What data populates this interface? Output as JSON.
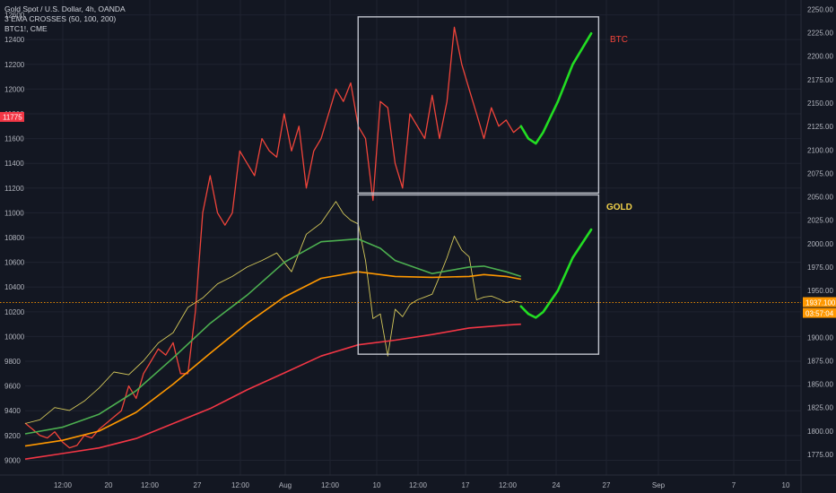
{
  "legend": {
    "title": "Gold Spot / U.S. Dollar, 4h, OANDA",
    "indicator": "3 EMA CROSSES (50, 100, 200)",
    "compare": "BTC1!, CME"
  },
  "colors": {
    "background": "#131722",
    "grid": "#1f2330",
    "btc_line": "#f0443a",
    "gold_line": "#d4c85a",
    "ema50": "#4caf50",
    "ema100": "#ff9800",
    "ema200": "#f23645",
    "projection": "#22dd22",
    "box": "#c0c3cc",
    "price_line": "#ff9800",
    "btc_badge": "#f23645",
    "gold_badge": "#ff9800"
  },
  "badges": {
    "btc_price": "11775",
    "gold_price": "1937.100",
    "countdown": "03:57:04"
  },
  "annotations": {
    "btc_label": "BTC",
    "gold_label": "GOLD"
  },
  "chart_data": {
    "type": "line",
    "title": "Gold Spot / U.S. Dollar, 4h, OANDA",
    "x_ticks": [
      "12:00",
      "20",
      "12:00",
      "27",
      "12:00",
      "Aug",
      "12:00",
      "10",
      "12:00",
      "17",
      "12:00",
      "24",
      "27",
      "Sep",
      "7",
      "10"
    ],
    "y_left": {
      "label": "BTC1!, CME",
      "ticks": [
        9000,
        9200,
        9400,
        9600,
        9800,
        10000,
        10200,
        10400,
        10600,
        10800,
        11000,
        11200,
        11400,
        11600,
        11800,
        12000,
        12200,
        12400,
        12600
      ],
      "ylim": [
        8880,
        12720
      ]
    },
    "y_right": {
      "label": "Gold Spot / U.S. Dollar",
      "ticks": [
        1775,
        1800,
        1825,
        1850,
        1875,
        1900,
        1925,
        1950,
        1975,
        2000,
        2025,
        2050,
        2075,
        2100,
        2125,
        2150,
        2175,
        2200,
        2225,
        2250
      ],
      "ylim": [
        1753,
        2260
      ]
    },
    "x_range": [
      0,
      100
    ],
    "series": [
      {
        "name": "BTC1!, CME",
        "axis": "left",
        "x": [
          0,
          1,
          2,
          3,
          4,
          5,
          6,
          7,
          8,
          9,
          10,
          11,
          12,
          13,
          14,
          15,
          16,
          17,
          18,
          19,
          20,
          21,
          22,
          23,
          23.5,
          24,
          25,
          26,
          27,
          28,
          29,
          30,
          31,
          32,
          33,
          34,
          35,
          36,
          37,
          38,
          39,
          40,
          41,
          42,
          43,
          44,
          45,
          46,
          47,
          48,
          49,
          50,
          51,
          52,
          53,
          54,
          55,
          56,
          57,
          58,
          59,
          60,
          61,
          62,
          63,
          64,
          65,
          66,
          67
        ],
        "values": [
          9300,
          9250,
          9200,
          9180,
          9230,
          9150,
          9100,
          9120,
          9200,
          9180,
          9250,
          9300,
          9350,
          9400,
          9600,
          9500,
          9700,
          9800,
          9900,
          9850,
          9950,
          9700,
          9700,
          10200,
          10600,
          11000,
          11300,
          11000,
          10900,
          11000,
          11500,
          11400,
          11300,
          11600,
          11500,
          11450,
          11800,
          11500,
          11700,
          11200,
          11500,
          11600,
          11800,
          12000,
          11900,
          12050,
          11700,
          11600,
          11100,
          11900,
          11850,
          11400,
          11200,
          11800,
          11700,
          11600,
          11950,
          11600,
          11900,
          12500,
          12200,
          12000,
          11800,
          11600,
          11850,
          11700,
          11750,
          11650,
          11700
        ]
      },
      {
        "name": "Gold Spot / U.S. Dollar",
        "axis": "right",
        "x": [
          0,
          2,
          4,
          6,
          8,
          10,
          12,
          14,
          16,
          18,
          20,
          22,
          24,
          26,
          28,
          30,
          32,
          34,
          36,
          38,
          40,
          42,
          43,
          44,
          45,
          46,
          47,
          48,
          49,
          50,
          51,
          52,
          53,
          54,
          55,
          56,
          57,
          58,
          59,
          60,
          61,
          62,
          63,
          64,
          65,
          66,
          67
        ],
        "values": [
          1808,
          1812,
          1825,
          1822,
          1832,
          1846,
          1863,
          1860,
          1875,
          1894,
          1905,
          1932,
          1942,
          1957,
          1965,
          1975,
          1982,
          1990,
          1970,
          2010,
          2022,
          2045,
          2032,
          2025,
          2021,
          1982,
          1920,
          1925,
          1880,
          1930,
          1922,
          1935,
          1940,
          1943,
          1946,
          1965,
          1985,
          2008,
          1993,
          1986,
          1940,
          1943,
          1944,
          1941,
          1937,
          1939,
          1937
        ]
      },
      {
        "name": "EMA 50",
        "axis": "right",
        "x": [
          0,
          5,
          10,
          15,
          20,
          25,
          30,
          35,
          40,
          45,
          48,
          50,
          55,
          60,
          62,
          65,
          67
        ],
        "values": [
          1797,
          1804,
          1818,
          1843,
          1878,
          1915,
          1945,
          1980,
          2002,
          2005,
          1995,
          1982,
          1968,
          1975,
          1976,
          1970,
          1965
        ]
      },
      {
        "name": "EMA 100",
        "axis": "right",
        "x": [
          0,
          5,
          10,
          15,
          20,
          25,
          30,
          35,
          40,
          45,
          50,
          55,
          60,
          62,
          65,
          67
        ],
        "values": [
          1784,
          1790,
          1800,
          1820,
          1850,
          1883,
          1915,
          1943,
          1963,
          1970,
          1965,
          1964,
          1965,
          1967,
          1965,
          1962
        ]
      },
      {
        "name": "EMA 200",
        "axis": "right",
        "x": [
          0,
          5,
          10,
          15,
          20,
          25,
          30,
          35,
          40,
          45,
          50,
          55,
          60,
          65,
          67
        ],
        "values": [
          1770,
          1776,
          1782,
          1792,
          1808,
          1824,
          1844,
          1862,
          1880,
          1892,
          1897,
          1903,
          1910,
          1913,
          1914
        ]
      }
    ],
    "projections": [
      {
        "name": "BTC projection",
        "axis": "left",
        "x": [
          67,
          68,
          69,
          70,
          72,
          74,
          76.5
        ],
        "values": [
          11700,
          11600,
          11560,
          11650,
          11900,
          12200,
          12450
        ]
      },
      {
        "name": "GOLD projection",
        "axis": "right",
        "x": [
          67,
          68,
          69,
          70,
          72,
          74,
          76.5
        ],
        "values": [
          1933,
          1925,
          1921,
          1927,
          1950,
          1985,
          2015
        ]
      }
    ],
    "boxes": [
      {
        "name": "btc-box",
        "x": [
          45,
          77.5
        ],
        "axis": "right",
        "y": [
          2054,
          2242
        ]
      },
      {
        "name": "gold-box",
        "x": [
          45,
          77.5
        ],
        "axis": "right",
        "y": [
          1882,
          2052
        ]
      }
    ],
    "price_level": 1937.1,
    "grid": true,
    "legend_position": "top-left"
  }
}
